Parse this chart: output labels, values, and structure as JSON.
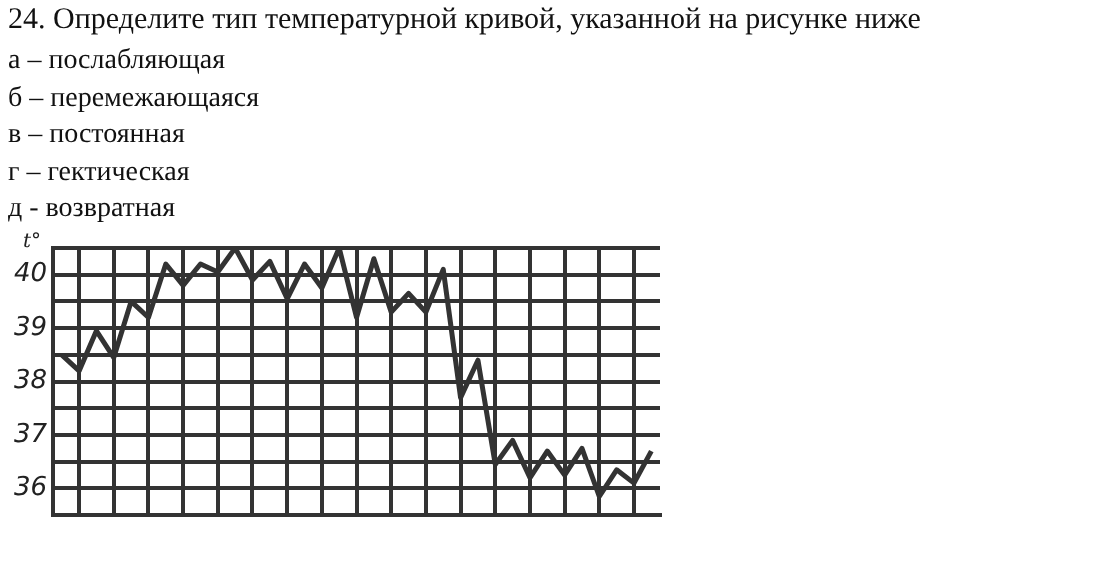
{
  "chart_data": {
    "type": "line",
    "title": "24. Определите тип температурной кривой, указанной на рисунке ниже",
    "annotations": [
      "а – послабляющая",
      "б – перемежающаяся",
      "в – постоянная",
      "г – гектическая",
      "д - возвратная"
    ],
    "ylabel": "t°",
    "categories": [
      null,
      null,
      null,
      null,
      null,
      null,
      null,
      null,
      null,
      null,
      null,
      null,
      null,
      null,
      null,
      null,
      null,
      null,
      null,
      null,
      null,
      null,
      null,
      null,
      null,
      null,
      null,
      null,
      null,
      null,
      null,
      null,
      null,
      null,
      null
    ],
    "series": [
      {
        "color": "#333333",
        "values": [
          38.5,
          38.2,
          38.95,
          38.45,
          39.5,
          39.2,
          40.2,
          39.8,
          40.2,
          40.05,
          40.5,
          39.9,
          40.25,
          39.55,
          40.2,
          39.75,
          40.5,
          39.2,
          40.3,
          39.3,
          39.65,
          39.3,
          40.1,
          37.7,
          38.4,
          36.45,
          36.9,
          36.2,
          36.7,
          36.25,
          36.75,
          35.85,
          36.35,
          36.1,
          36.7
        ]
      }
    ],
    "ylim": [
      35.5,
      40.5
    ],
    "yticks": [
      {
        "value": 35.5,
        "label": null
      },
      36,
      {
        "value": 36.5,
        "label": null
      },
      37,
      {
        "value": 37.5,
        "label": null
      },
      38,
      {
        "value": 38.5,
        "label": null
      },
      39,
      {
        "value": 39.5,
        "label": null
      },
      40,
      {
        "value": 40.5,
        "label": null
      }
    ],
    "grid": true,
    "legend": false,
    "marker": "none",
    "line_style": "solid"
  }
}
